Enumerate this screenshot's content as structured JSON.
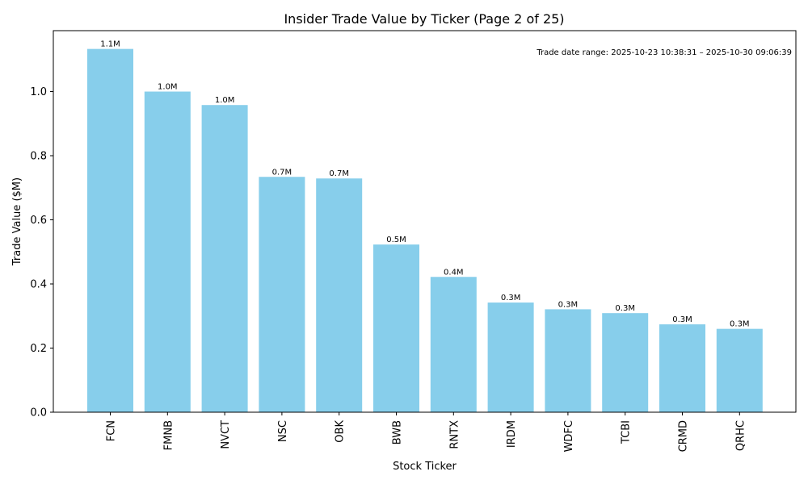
{
  "chart_data": {
    "type": "bar",
    "title": "Insider Trade Value by Ticker (Page 2 of 25)",
    "xlabel": "Stock Ticker",
    "ylabel": "Trade Value ($M)",
    "categories": [
      "FCN",
      "FMNB",
      "NVCT",
      "NSC",
      "OBK",
      "BWB",
      "RNTX",
      "IRDM",
      "WDFC",
      "TCBI",
      "CRMD",
      "QRHC"
    ],
    "values": [
      1.133,
      1.0,
      0.958,
      0.734,
      0.729,
      0.523,
      0.422,
      0.342,
      0.321,
      0.309,
      0.274,
      0.26
    ],
    "data_labels": [
      "1.1M",
      "1.0M",
      "1.0M",
      "0.7M",
      "0.7M",
      "0.5M",
      "0.4M",
      "0.3M",
      "0.3M",
      "0.3M",
      "0.3M",
      "0.3M"
    ],
    "ylim": [
      0,
      1.19
    ],
    "yticks": [
      0.0,
      0.2,
      0.4,
      0.6,
      0.8,
      1.0
    ],
    "ytick_labels": [
      "0.0",
      "0.2",
      "0.4",
      "0.6",
      "0.8",
      "1.0"
    ],
    "bar_color": "#87ceeb",
    "annotation": "Trade date range: 2025-10-23 10:38:31 – 2025-10-30 09:06:39",
    "annotation_position": "top-right",
    "grid": false,
    "legend": false
  }
}
